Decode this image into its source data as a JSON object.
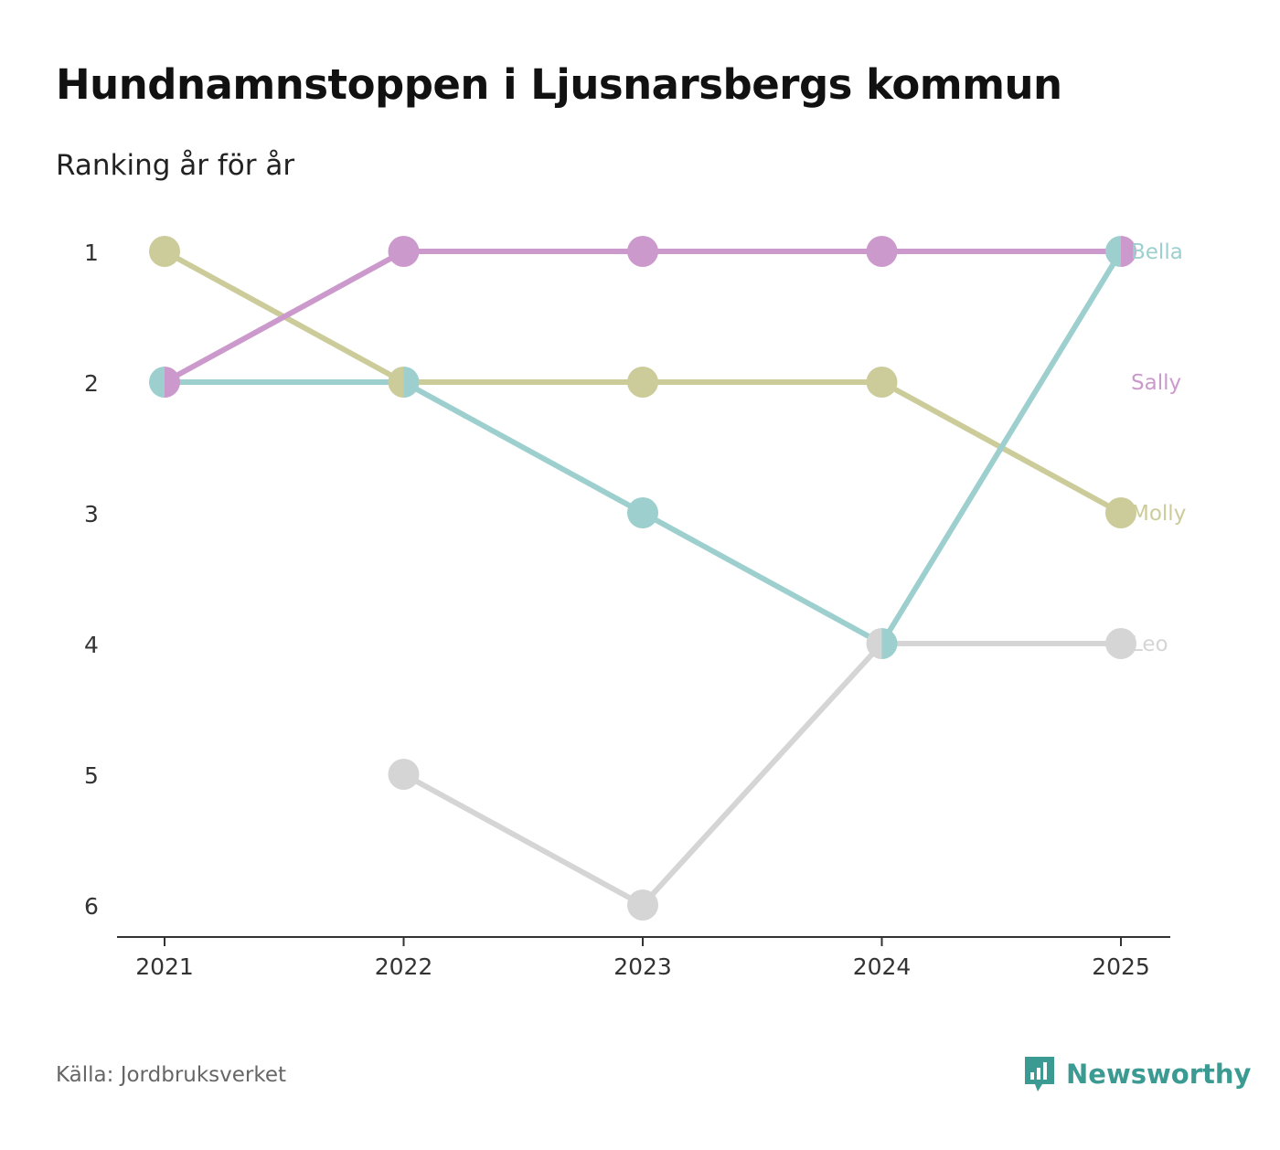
{
  "header": {
    "title": "Hundnamnstoppen i Ljusnarsbergs kommun",
    "subtitle": "Ranking år för år"
  },
  "footer": {
    "source": "Källa: Jordbruksverket",
    "brand": "Newsworthy",
    "brand_icon": "bar-chart-speech-bubble-icon",
    "brand_color": "#3b9a91"
  },
  "chart_data": {
    "type": "line",
    "title": "Hundnamnstoppen i Ljusnarsbergs kommun",
    "subtitle": "Ranking år för år",
    "xlabel": "",
    "ylabel": "",
    "x": [
      "2021",
      "2022",
      "2023",
      "2024",
      "2025"
    ],
    "y_ticks": [
      1,
      2,
      3,
      4,
      5,
      6
    ],
    "ylim": [
      1,
      6
    ],
    "y_inverted": true,
    "grid": false,
    "legend": "direct labels at right end",
    "series": [
      {
        "name": "Leo",
        "color": "#d5d5d5",
        "values": [
          null,
          5,
          6,
          4,
          4
        ]
      },
      {
        "name": "Molly",
        "color": "#cccc9a",
        "values": [
          1,
          2,
          2,
          2,
          3
        ]
      },
      {
        "name": "Bella",
        "color": "#9ccfcd",
        "values": [
          2,
          2,
          3,
          4,
          1
        ]
      },
      {
        "name": "Sally",
        "color": "#cc99cc",
        "values": [
          2,
          1,
          1,
          1,
          1
        ]
      }
    ]
  }
}
